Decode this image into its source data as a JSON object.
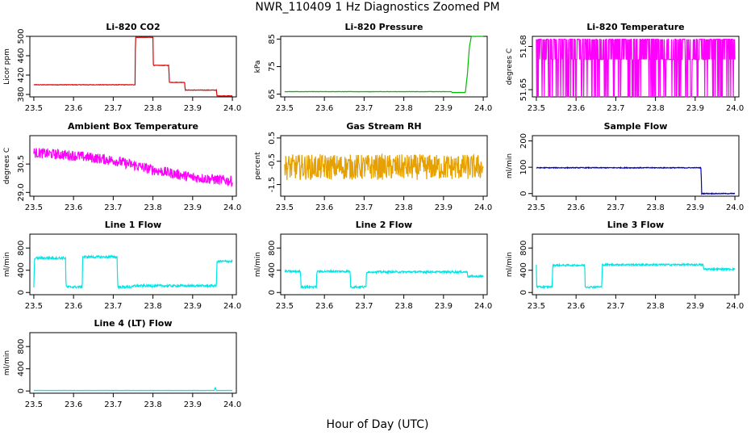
{
  "figure": {
    "title": "NWR_110409  1 Hz Diagnostics Zoomed PM",
    "xlabel": "Hour of Day (UTC)"
  },
  "chart_data": [
    {
      "type": "line",
      "title": "Li-820 CO2",
      "xlabel": "",
      "ylabel": "Licor ppm",
      "xlim": [
        23.49,
        24.01
      ],
      "xticks": [
        "23.5",
        "23.6",
        "23.7",
        "23.8",
        "23.9",
        "24.0"
      ],
      "ylim": [
        375,
        500
      ],
      "yticks": [
        "380",
        "420",
        "460",
        "500"
      ],
      "color": "#dd0000",
      "style": "line",
      "noise": 1,
      "series": [
        {
          "x": [
            23.5,
            23.755,
            23.756,
            23.8,
            23.801,
            23.84,
            23.841,
            23.88,
            23.881,
            23.96,
            23.961,
            24.0
          ],
          "y": [
            400,
            400,
            498,
            498,
            440,
            440,
            405,
            405,
            389,
            389,
            377,
            377
          ]
        }
      ]
    },
    {
      "type": "line",
      "title": "Li-820 Pressure",
      "xlabel": "",
      "ylabel": "kPa",
      "xlim": [
        23.49,
        24.01
      ],
      "xticks": [
        "23.5",
        "23.6",
        "23.7",
        "23.8",
        "23.9",
        "24.0"
      ],
      "ylim": [
        64,
        86
      ],
      "yticks": [
        "65",
        "75",
        "85"
      ],
      "color": "#00bb00",
      "style": "line",
      "noise": 0.1,
      "series": [
        {
          "x": [
            23.5,
            23.92,
            23.921,
            23.955,
            23.96,
            23.965,
            23.97,
            24.0
          ],
          "y": [
            65.9,
            65.9,
            65.6,
            65.6,
            72,
            82,
            86,
            86
          ]
        }
      ]
    },
    {
      "type": "line",
      "title": "Li-820 Temperature",
      "xlabel": "",
      "ylabel": "degrees C",
      "xlim": [
        23.49,
        24.01
      ],
      "xticks": [
        "23.5",
        "23.6",
        "23.7",
        "23.8",
        "23.9",
        "24.0"
      ],
      "ylim": [
        51.645,
        51.687
      ],
      "yticks": [
        "51.65",
        "51.68"
      ],
      "color": "#ff00ff",
      "style": "quantized",
      "levels": [
        51.685,
        51.671,
        51.645
      ],
      "series": [
        {
          "x": [
            23.5,
            24.0
          ],
          "y": [
            51.671,
            51.671
          ]
        }
      ]
    },
    {
      "type": "line",
      "title": "Ambient Box Temperature",
      "xlabel": "",
      "ylabel": "degrees C",
      "xlim": [
        23.49,
        24.01
      ],
      "xticks": [
        "23.5",
        "23.6",
        "23.7",
        "23.8",
        "23.9",
        "24.0"
      ],
      "ylim": [
        28.8,
        32.0
      ],
      "yticks": [
        "29.0",
        "30.5"
      ],
      "color": "#ff00ff",
      "style": "line",
      "noise": 0.55,
      "series": [
        {
          "x": [
            23.5,
            23.6,
            23.7,
            23.8,
            23.9,
            24.0
          ],
          "y": [
            31.1,
            30.95,
            30.7,
            30.2,
            29.8,
            29.6
          ]
        }
      ]
    },
    {
      "type": "line",
      "title": "Gas Stream RH",
      "xlabel": "",
      "ylabel": "percent",
      "xlim": [
        23.49,
        24.01
      ],
      "xticks": [
        "23.5",
        "23.6",
        "23.7",
        "23.8",
        "23.9",
        "24.0"
      ],
      "ylim": [
        -2.0,
        0.6
      ],
      "yticks": [
        "-1.5",
        "-0.5",
        "0.5"
      ],
      "color": "#e6a000",
      "style": "line",
      "noise": 1.1,
      "series": [
        {
          "x": [
            23.5,
            24.0
          ],
          "y": [
            -0.75,
            -0.75
          ]
        }
      ]
    },
    {
      "type": "line",
      "title": "Sample Flow",
      "xlabel": "",
      "ylabel": "ml/min",
      "xlim": [
        23.49,
        24.01
      ],
      "xticks": [
        "23.5",
        "23.6",
        "23.7",
        "23.8",
        "23.9",
        "24.0"
      ],
      "ylim": [
        -10,
        220
      ],
      "yticks": [
        "0",
        "100",
        "200"
      ],
      "color": "#0000cc",
      "style": "line",
      "noise": 3,
      "series": [
        {
          "x": [
            23.5,
            23.915,
            23.916,
            24.0
          ],
          "y": [
            98,
            98,
            0,
            0
          ]
        }
      ]
    },
    {
      "type": "line",
      "title": "Line 1 Flow",
      "xlabel": "",
      "ylabel": "ml/min",
      "xlim": [
        23.49,
        24.01
      ],
      "xticks": [
        "23.5",
        "23.6",
        "23.7",
        "23.8",
        "23.9",
        "24.0"
      ],
      "ylim": [
        -40,
        1050
      ],
      "yticks": [
        "0",
        "400",
        "800"
      ],
      "color": "#00e5e5",
      "style": "line",
      "noise": 40,
      "series": [
        {
          "x": [
            23.5,
            23.502,
            23.58,
            23.581,
            23.622,
            23.623,
            23.71,
            23.711,
            23.75,
            23.751,
            23.96,
            23.961,
            24.0
          ],
          "y": [
            100,
            620,
            620,
            100,
            100,
            640,
            640,
            100,
            100,
            120,
            120,
            560,
            560
          ]
        }
      ]
    },
    {
      "type": "line",
      "title": "Line 2 Flow",
      "xlabel": "",
      "ylabel": "ml/min",
      "xlim": [
        23.49,
        24.01
      ],
      "xticks": [
        "23.5",
        "23.6",
        "23.7",
        "23.8",
        "23.9",
        "24.0"
      ],
      "ylim": [
        -40,
        1050
      ],
      "yticks": [
        "0",
        "400",
        "800"
      ],
      "color": "#00e5e5",
      "style": "line",
      "noise": 35,
      "series": [
        {
          "x": [
            23.5,
            23.54,
            23.541,
            23.58,
            23.581,
            23.665,
            23.666,
            23.705,
            23.706,
            23.96,
            23.961,
            24.0
          ],
          "y": [
            380,
            380,
            100,
            100,
            380,
            380,
            100,
            100,
            370,
            370,
            290,
            290
          ]
        }
      ]
    },
    {
      "type": "line",
      "title": "Line 3 Flow",
      "xlabel": "",
      "ylabel": "ml/min",
      "xlim": [
        23.49,
        24.01
      ],
      "xticks": [
        "23.5",
        "23.6",
        "23.7",
        "23.8",
        "23.9",
        "24.0"
      ],
      "ylim": [
        -40,
        1050
      ],
      "yticks": [
        "0",
        "400",
        "800"
      ],
      "color": "#00e5e5",
      "style": "line",
      "noise": 30,
      "series": [
        {
          "x": [
            23.5,
            23.501,
            23.503,
            23.54,
            23.541,
            23.622,
            23.623,
            23.665,
            23.666,
            23.92,
            23.921,
            24.0
          ],
          "y": [
            500,
            100,
            100,
            100,
            490,
            490,
            100,
            100,
            500,
            500,
            420,
            420
          ]
        }
      ]
    },
    {
      "type": "line",
      "title": "Line 4 (LT) Flow",
      "xlabel": "",
      "ylabel": "ml/min",
      "xlim": [
        23.49,
        24.01
      ],
      "xticks": [
        "23.5",
        "23.6",
        "23.7",
        "23.8",
        "23.9",
        "24.0"
      ],
      "ylim": [
        -40,
        1050
      ],
      "yticks": [
        "0",
        "400",
        "800"
      ],
      "color": "#00e5e5",
      "style": "line",
      "noise": 2,
      "series": [
        {
          "x": [
            23.5,
            23.955,
            23.956,
            23.958,
            23.959,
            24.0
          ],
          "y": [
            10,
            10,
            60,
            60,
            10,
            10
          ]
        }
      ]
    }
  ]
}
